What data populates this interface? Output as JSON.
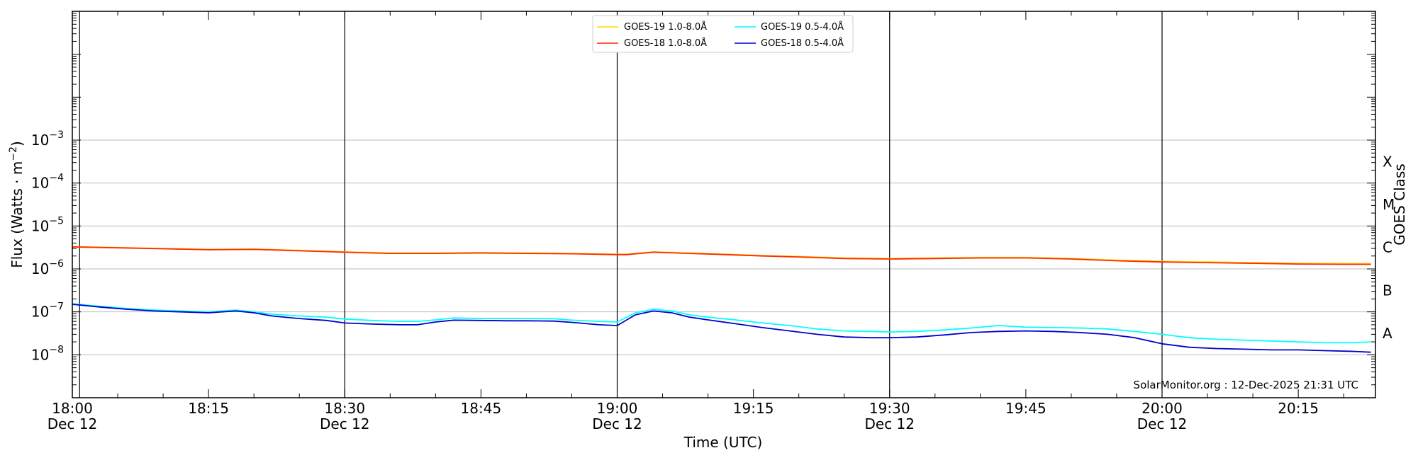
{
  "chart_data": {
    "type": "line",
    "xlabel": "Time (UTC)",
    "ylabel_prefix": "Flux (Watts · m",
    "ylabel_exp": "−2",
    "ylabel_suffix": ")",
    "right_label": "GOES Class",
    "credit": "SolarMonitor.org : 12-Dec-2025 21:31 UTC",
    "xlim_minutes": [
      0,
      143.5
    ],
    "ylim_log10": [
      -9,
      0
    ],
    "scale": "log",
    "x_ticks": [
      {
        "minutes": 0,
        "label": "18:00",
        "sublabel": "Dec 12"
      },
      {
        "minutes": 15,
        "label": "18:15",
        "sublabel": ""
      },
      {
        "minutes": 30,
        "label": "18:30",
        "sublabel": "Dec 12"
      },
      {
        "minutes": 45,
        "label": "18:45",
        "sublabel": ""
      },
      {
        "minutes": 60,
        "label": "19:00",
        "sublabel": "Dec 12"
      },
      {
        "minutes": 75,
        "label": "19:15",
        "sublabel": ""
      },
      {
        "minutes": 90,
        "label": "19:30",
        "sublabel": "Dec 12"
      },
      {
        "minutes": 105,
        "label": "19:45",
        "sublabel": ""
      },
      {
        "minutes": 120,
        "label": "20:00",
        "sublabel": "Dec 12"
      },
      {
        "minutes": 135,
        "label": "20:15",
        "sublabel": ""
      }
    ],
    "y_ticks": [
      {
        "exp": -8,
        "label_base": "10",
        "label_exp": "−8"
      },
      {
        "exp": -7,
        "label_base": "10",
        "label_exp": "−7"
      },
      {
        "exp": -6,
        "label_base": "10",
        "label_exp": "−6"
      },
      {
        "exp": -5,
        "label_base": "10",
        "label_exp": "−5"
      },
      {
        "exp": -4,
        "label_base": "10",
        "label_exp": "−4"
      },
      {
        "exp": -3,
        "label_base": "10",
        "label_exp": "−3"
      }
    ],
    "classes": [
      {
        "label": "A",
        "exp": -7.5
      },
      {
        "label": "B",
        "exp": -6.5
      },
      {
        "label": "C",
        "exp": -5.5
      },
      {
        "label": "M",
        "exp": -4.5
      },
      {
        "label": "X",
        "exp": -3.5
      }
    ],
    "vlines_minutes": [
      0.8,
      30,
      60,
      90,
      120
    ],
    "legend": {
      "placement": "top-center",
      "entries": [
        {
          "label": "GOES-19 1.0-8.0Å",
          "color": "#ffd700"
        },
        {
          "label": "GOES-19 0.5-4.0Å",
          "color": "#00ffff"
        },
        {
          "label": "GOES-18 1.0-8.0Å",
          "color": "#ff2a00"
        },
        {
          "label": "GOES-18 0.5-4.0Å",
          "color": "#0000cc"
        }
      ]
    },
    "series": [
      {
        "name": "GOES-19 1.0-8.0Å",
        "color": "#ffd700",
        "x": [
          0,
          5,
          10,
          15,
          20,
          25,
          30,
          35,
          40,
          45,
          50,
          55,
          60,
          61,
          64,
          68,
          72,
          76,
          80,
          85,
          90,
          95,
          100,
          105,
          110,
          115,
          120,
          125,
          130,
          135,
          140,
          143
        ],
        "y": [
          3.3e-06,
          3.15e-06,
          3e-06,
          2.85e-06,
          2.9e-06,
          2.7e-06,
          2.5e-06,
          2.35e-06,
          2.35e-06,
          2.4e-06,
          2.35e-06,
          2.3e-06,
          2.2e-06,
          2.2e-06,
          2.5e-06,
          2.35e-06,
          2.2e-06,
          2.05e-06,
          1.95e-06,
          1.8e-06,
          1.75e-06,
          1.8e-06,
          1.85e-06,
          1.85e-06,
          1.75e-06,
          1.6e-06,
          1.5e-06,
          1.45e-06,
          1.4e-06,
          1.35e-06,
          1.33e-06,
          1.33e-06
        ]
      },
      {
        "name": "GOES-18 1.0-8.0Å",
        "color": "#ff2a00",
        "x": [
          0,
          5,
          10,
          15,
          20,
          25,
          30,
          35,
          40,
          45,
          50,
          55,
          60,
          61,
          64,
          68,
          72,
          76,
          80,
          85,
          90,
          95,
          100,
          105,
          110,
          115,
          120,
          125,
          130,
          135,
          140,
          143
        ],
        "y": [
          3.25e-06,
          3.1e-06,
          2.95e-06,
          2.8e-06,
          2.85e-06,
          2.65e-06,
          2.45e-06,
          2.3e-06,
          2.3e-06,
          2.35e-06,
          2.3e-06,
          2.25e-06,
          2.15e-06,
          2.15e-06,
          2.45e-06,
          2.3e-06,
          2.15e-06,
          2e-06,
          1.9e-06,
          1.75e-06,
          1.7e-06,
          1.75e-06,
          1.8e-06,
          1.8e-06,
          1.7e-06,
          1.55e-06,
          1.45e-06,
          1.4e-06,
          1.35e-06,
          1.3e-06,
          1.28e-06,
          1.28e-06
        ]
      },
      {
        "name": "GOES-19 0.5-4.0Å",
        "color": "#00ffff",
        "x": [
          0,
          3,
          6,
          9,
          12,
          15,
          18,
          20,
          22,
          25,
          28,
          30,
          33,
          36,
          38,
          40,
          42,
          45,
          48,
          50,
          53,
          55,
          58,
          60,
          62,
          64,
          66,
          68,
          70,
          73,
          76,
          79,
          82,
          85,
          88,
          90,
          93,
          96,
          99,
          102,
          105,
          108,
          111,
          114,
          117,
          120,
          123,
          126,
          129,
          132,
          135,
          138,
          141,
          143
        ],
        "y": [
          1.55e-07,
          1.35e-07,
          1.2e-07,
          1.1e-07,
          1.05e-07,
          1e-07,
          1.1e-07,
          1e-07,
          8.8e-08,
          8e-08,
          7.5e-08,
          6.8e-08,
          6.3e-08,
          6e-08,
          6e-08,
          6.5e-08,
          7.2e-08,
          7e-08,
          7e-08,
          7e-08,
          6.9e-08,
          6.4e-08,
          6e-08,
          5.8e-08,
          9.5e-08,
          1.15e-07,
          1.05e-07,
          8.5e-08,
          7.5e-08,
          6.5e-08,
          5.5e-08,
          4.8e-08,
          4e-08,
          3.6e-08,
          3.5e-08,
          3.4e-08,
          3.5e-08,
          3.8e-08,
          4.2e-08,
          4.8e-08,
          4.4e-08,
          4.3e-08,
          4.2e-08,
          4e-08,
          3.5e-08,
          3e-08,
          2.5e-08,
          2.3e-08,
          2.2e-08,
          2.1e-08,
          2e-08,
          1.9e-08,
          1.9e-08,
          2e-08
        ]
      },
      {
        "name": "GOES-18 0.5-4.0Å",
        "color": "#0000cc",
        "x": [
          0,
          3,
          6,
          9,
          12,
          15,
          18,
          20,
          22,
          25,
          28,
          30,
          33,
          36,
          38,
          40,
          42,
          45,
          48,
          50,
          53,
          55,
          58,
          60,
          62,
          64,
          66,
          68,
          70,
          73,
          76,
          79,
          82,
          85,
          88,
          90,
          93,
          96,
          99,
          102,
          105,
          108,
          111,
          114,
          117,
          120,
          123,
          126,
          129,
          132,
          135,
          138,
          141,
          143
        ],
        "y": [
          1.5e-07,
          1.3e-07,
          1.15e-07,
          1.05e-07,
          1e-07,
          9.5e-08,
          1.05e-07,
          9.5e-08,
          8e-08,
          7e-08,
          6.3e-08,
          5.5e-08,
          5.2e-08,
          5e-08,
          5e-08,
          5.8e-08,
          6.4e-08,
          6.3e-08,
          6.2e-08,
          6.2e-08,
          6.1e-08,
          5.7e-08,
          5e-08,
          4.8e-08,
          8.5e-08,
          1.05e-07,
          9.5e-08,
          7.5e-08,
          6.5e-08,
          5.3e-08,
          4.3e-08,
          3.6e-08,
          3e-08,
          2.6e-08,
          2.5e-08,
          2.5e-08,
          2.6e-08,
          2.9e-08,
          3.3e-08,
          3.5e-08,
          3.6e-08,
          3.5e-08,
          3.3e-08,
          3e-08,
          2.5e-08,
          1.8e-08,
          1.5e-08,
          1.4e-08,
          1.35e-08,
          1.3e-08,
          1.3e-08,
          1.25e-08,
          1.2e-08,
          1.15e-08
        ]
      }
    ]
  }
}
